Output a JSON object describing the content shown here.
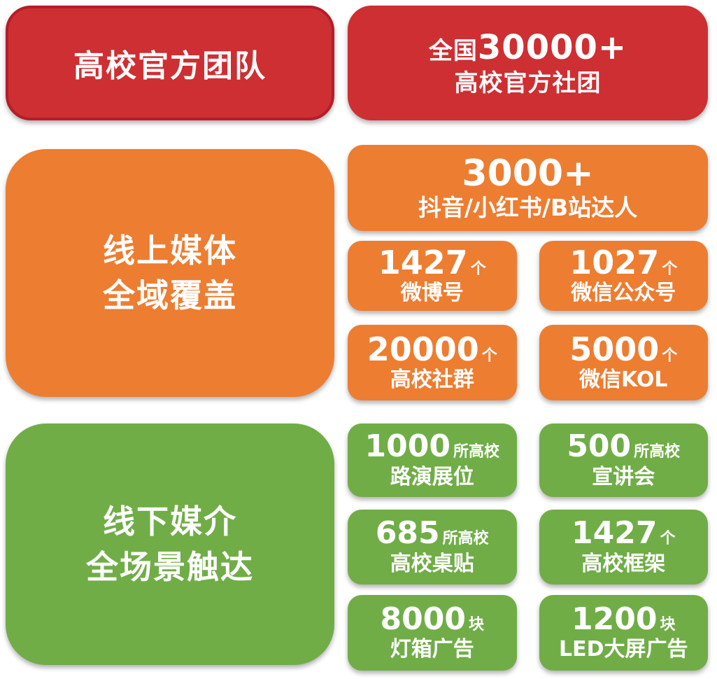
{
  "palette": {
    "red": "#CE2F32",
    "red_border": "#B41E28",
    "orange": "#ED7D31",
    "green": "#70AD47",
    "text": "#FFFFFF",
    "background": "#FFFFFF"
  },
  "official": {
    "banner_title": "高校官方团队",
    "stat": {
      "prefix": "全国",
      "number": "30000+",
      "label": "高校官方社团"
    }
  },
  "online": {
    "panel_title_line1": "线上媒体",
    "panel_title_line2": "全域覆盖",
    "hero": {
      "number": "3000+",
      "label": "抖音/小红书/B站达人"
    },
    "stats": [
      {
        "number": "1427",
        "unit": "个",
        "label": "微博号"
      },
      {
        "number": "1027",
        "unit": "个",
        "label": "微信公众号"
      },
      {
        "number": "20000",
        "unit": "个",
        "label": "高校社群"
      },
      {
        "number": "5000",
        "unit": "个",
        "label": "微信KOL"
      }
    ]
  },
  "offline": {
    "panel_title_line1": "线下媒介",
    "panel_title_line2": "全场景触达",
    "stats": [
      {
        "number": "1000",
        "unit": "所高校",
        "label": "路演展位"
      },
      {
        "number": "500",
        "unit": "所高校",
        "label": "宣讲会"
      },
      {
        "number": "685",
        "unit": "所高校",
        "label": "高校桌贴"
      },
      {
        "number": "1427",
        "unit": "个",
        "label": "高校框架"
      },
      {
        "number": "8000",
        "unit": "块",
        "label": "灯箱广告"
      },
      {
        "number": "1200",
        "unit": "块",
        "label": "LED大屏广告"
      }
    ]
  }
}
